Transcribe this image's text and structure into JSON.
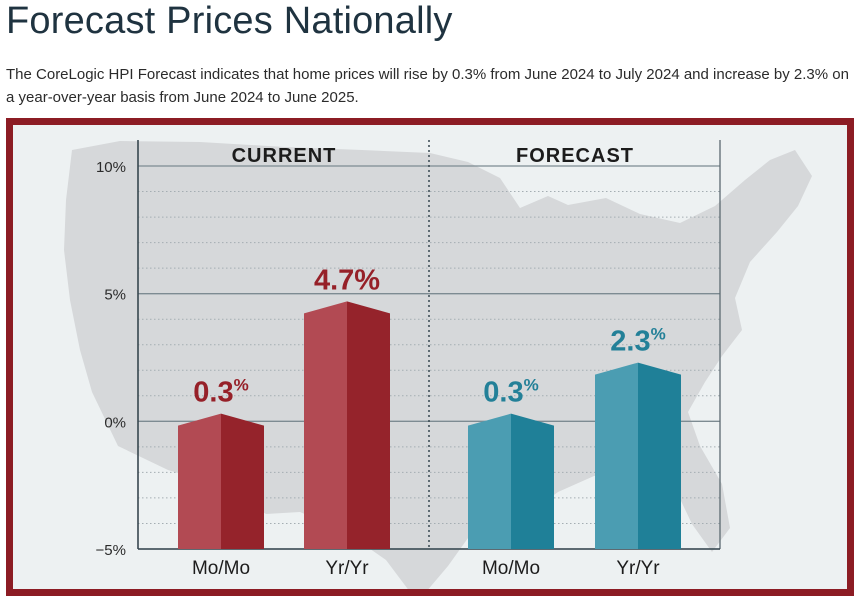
{
  "page": {
    "title": "Forecast Prices Nationally",
    "description": "The CoreLogic HPI Forecast indicates that home prices will rise by 0.3% from June 2024 to July 2024 and increase by 2.3% on a year-over-year basis from June 2024 to June 2025."
  },
  "chart_data": {
    "type": "bar",
    "title": "",
    "xlabel": "",
    "ylabel": "",
    "ylim": [
      -5,
      10
    ],
    "yticks": [
      10,
      5,
      0,
      -5
    ],
    "ytick_labels": [
      "10%",
      "5%",
      "0%",
      "−5%"
    ],
    "grid": true,
    "background": "US map silhouette",
    "panels": [
      {
        "name": "CURRENT",
        "color_light": "#b24a53",
        "color_dark": "#95232b",
        "label_color": "#962028",
        "categories": [
          "Mo/Mo",
          "Yr/Yr"
        ],
        "values": [
          0.3,
          4.7
        ],
        "value_numbers": [
          "0.3",
          "4.7"
        ],
        "value_units": [
          "%",
          "%"
        ]
      },
      {
        "name": "FORECAST",
        "color_light": "#4b9db2",
        "color_dark": "#1f8098",
        "label_color": "#238098",
        "categories": [
          "Mo/Mo",
          "Yr/Yr"
        ],
        "values": [
          0.3,
          2.3
        ],
        "value_numbers": [
          "0.3",
          "2.3"
        ],
        "value_units": [
          "%",
          "%"
        ]
      }
    ]
  }
}
